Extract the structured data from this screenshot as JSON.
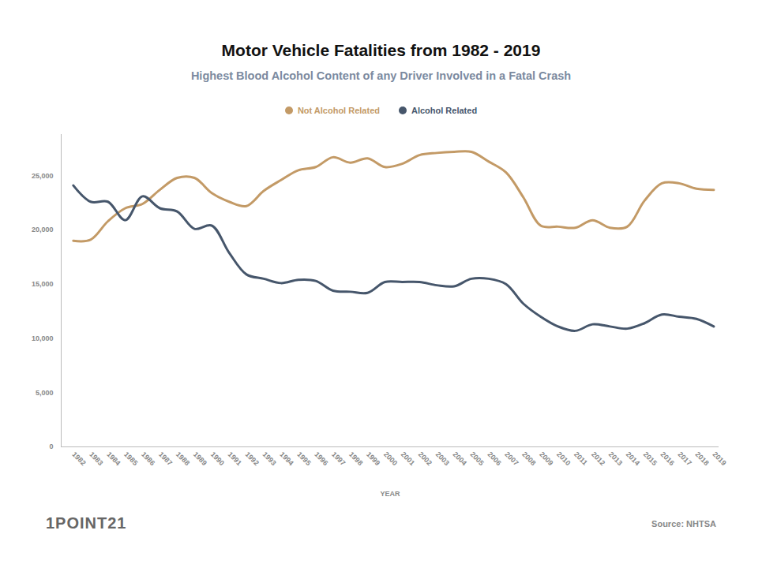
{
  "chart_data": {
    "type": "line",
    "title": "Motor Vehicle Fatalities from 1982 - 2019",
    "subtitle": "Highest Blood Alcohol Content of any Driver Involved in a Fatal Crash",
    "x_label": "YEAR",
    "source": "Source: NHTSA",
    "logo": "1POINT21",
    "x": [
      1982,
      1983,
      1984,
      1985,
      1986,
      1987,
      1988,
      1989,
      1990,
      1991,
      1992,
      1993,
      1994,
      1995,
      1996,
      1997,
      1998,
      1999,
      2000,
      2001,
      2002,
      2003,
      2004,
      2005,
      2006,
      2007,
      2008,
      2009,
      2010,
      2011,
      2012,
      2013,
      2014,
      2015,
      2016,
      2017,
      2018,
      2019
    ],
    "series": [
      {
        "name": "Not Alcohol Related",
        "color": "#c39a66",
        "values": [
          19000,
          19100,
          20800,
          22000,
          22400,
          23700,
          24800,
          24800,
          23400,
          22600,
          22200,
          23600,
          24600,
          25500,
          25800,
          26700,
          26200,
          26600,
          25800,
          26100,
          26900,
          27100,
          27200,
          27200,
          26300,
          25300,
          23000,
          20400,
          20300,
          20200,
          20900,
          20200,
          20300,
          22700,
          24300,
          24300,
          23800,
          23700
        ]
      },
      {
        "name": "Alcohol Related",
        "color": "#46566b",
        "values": [
          24100,
          22600,
          22600,
          20900,
          23100,
          22000,
          21700,
          20100,
          20400,
          17900,
          15900,
          15500,
          15100,
          15400,
          15300,
          14400,
          14300,
          14200,
          15200,
          15200,
          15200,
          14900,
          14800,
          15500,
          15500,
          15000,
          13200,
          12000,
          11100,
          10700,
          11300,
          11100,
          10900,
          11400,
          12200,
          12000,
          11800,
          11100
        ]
      }
    ],
    "xlim": [
      1981.3,
      2019.3
    ],
    "xticks": [
      1982,
      1983,
      1984,
      1985,
      1986,
      1987,
      1988,
      1989,
      1990,
      1991,
      1992,
      1993,
      1994,
      1995,
      1996,
      1997,
      1998,
      1999,
      2000,
      2001,
      2002,
      2003,
      2004,
      2005,
      2006,
      2007,
      2008,
      2009,
      2010,
      2011,
      2012,
      2013,
      2014,
      2015,
      2016,
      2017,
      2018,
      2019
    ],
    "ylim": [
      0,
      28800
    ],
    "yticks": [
      0,
      {
        "value": 5000,
        "label": "5,000"
      },
      {
        "value": 10000,
        "label": "10,000"
      },
      {
        "value": 15000,
        "label": "15,000"
      },
      {
        "value": 20000,
        "label": "20,000"
      },
      {
        "value": 25000,
        "label": "25,000"
      }
    ],
    "grid": false,
    "legend": "top"
  }
}
